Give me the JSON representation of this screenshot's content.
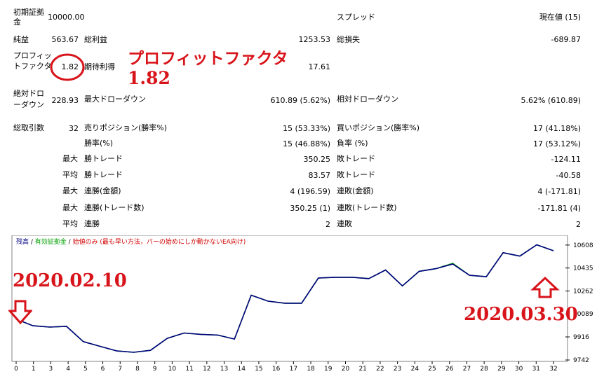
{
  "report": {
    "initial_deposit": {
      "label": "初期証拠金",
      "value": "10000.00"
    },
    "spread": {
      "label": "スプレッド",
      "value": "現在値 (15)"
    },
    "net_profit": {
      "label": "純益",
      "value": "563.67"
    },
    "gross_profit": {
      "label": "総利益",
      "value": "1253.53"
    },
    "gross_loss": {
      "label": "総損失",
      "value": "-689.87"
    },
    "profit_factor": {
      "label": "プロフィットファクタ",
      "value": "1.82"
    },
    "expected_payoff": {
      "label": "期待利得",
      "value": "17.61"
    },
    "absolute_drawdown": {
      "label": "絶対ドローダウン",
      "value": "228.93"
    },
    "maximal_drawdown": {
      "label": "最大ドローダウン",
      "value": "610.89 (5.62%)"
    },
    "relative_drawdown": {
      "label": "相対ドローダウン",
      "value": "5.62% (610.89)"
    },
    "total_trades": {
      "label": "総取引数",
      "value": "32"
    },
    "short_positions": {
      "label": "売りポジション(勝率%)",
      "value": "15 (53.33%)"
    },
    "long_positions": {
      "label": "買いポジション(勝率%)",
      "value": "17 (41.18%)"
    },
    "profit_trades": {
      "label": "勝率(%)",
      "value": "15 (46.88%)"
    },
    "loss_trades": {
      "label": "負率 (%)",
      "value": "17 (53.12%)"
    },
    "largest_profit": {
      "prefix": "最大",
      "label": "勝トレード",
      "value": "350.25"
    },
    "largest_loss": {
      "label": "敗トレード",
      "value": "-124.11"
    },
    "average_profit": {
      "prefix": "平均",
      "label": "勝トレード",
      "value": "83.57"
    },
    "average_loss": {
      "label": "敗トレード",
      "value": "-40.58"
    },
    "max_consec_wins": {
      "prefix": "最大",
      "label": "連勝(金額)",
      "value": "4 (196.59)"
    },
    "max_consec_losses": {
      "label": "連敗(金額)",
      "value": "4 (-171.81)"
    },
    "max_consec_profit": {
      "prefix": "最大",
      "label": "連勝(トレード数)",
      "value": "350.25 (1)"
    },
    "max_consec_loss": {
      "label": "連敗(トレード数)",
      "value": "-171.81 (4)"
    },
    "avg_consec_wins": {
      "prefix": "平均",
      "label": "連勝",
      "value": "2"
    },
    "avg_consec_losses": {
      "label": "連敗",
      "value": "2"
    }
  },
  "annotations": {
    "pf_title": "プロフィットファクタ",
    "pf_value": "1.82",
    "start_date": "2020.02.10",
    "end_date": "2020.03.30",
    "colors": {
      "annotation": "#d8141b"
    }
  },
  "chart_legend": {
    "balance": "残高",
    "sep1": " / ",
    "equity": "有効証拠金",
    "sep2": " / ",
    "note": "始値のみ (最も早い方法，バーの始めにしか動かないEA向け)",
    "colors": {
      "balance": "#000080",
      "equity": "#00a000",
      "note": "#d00000"
    }
  },
  "chart_data": {
    "type": "line",
    "x": [
      0,
      1,
      2,
      3,
      4,
      5,
      6,
      7,
      8,
      9,
      10,
      11,
      12,
      13,
      14,
      15,
      16,
      17,
      18,
      19,
      20,
      21,
      22,
      23,
      24,
      25,
      26,
      27,
      28,
      29,
      30,
      31,
      32
    ],
    "x_tick_labels": [
      "0",
      "1",
      "3",
      "4",
      "5",
      "6",
      "7",
      "8",
      "9",
      "10",
      "11",
      "12",
      "13",
      "14",
      "15",
      "16",
      "17",
      "18",
      "19",
      "20",
      "21",
      "22",
      "23",
      "24",
      "25",
      "26",
      "27",
      "28",
      "29",
      "30",
      "31",
      "32"
    ],
    "series": [
      {
        "name": "残高",
        "color": "#000080",
        "values": [
          10050,
          10000,
          9990,
          9995,
          9880,
          9845,
          9810,
          9800,
          9815,
          9905,
          9945,
          9935,
          9930,
          9900,
          10230,
          10185,
          10170,
          10170,
          10360,
          10365,
          10365,
          10355,
          10420,
          10300,
          10410,
          10430,
          10465,
          10380,
          10370,
          10550,
          10525,
          10610,
          10565
        ]
      },
      {
        "name": "有効証拠金",
        "color": "#00a000",
        "values": [
          10050,
          10000,
          9990,
          9995,
          9880,
          9845,
          9810,
          9800,
          9815,
          9905,
          9945,
          9935,
          9930,
          9900,
          10230,
          10185,
          10170,
          10170,
          10360,
          10365,
          10365,
          10355,
          10420,
          10300,
          10410,
          10430,
          10470,
          10380,
          10370,
          10550,
          10525,
          10610,
          10565
        ]
      }
    ],
    "y_tick_labels": [
      "10608",
      "10435",
      "10262",
      "10089",
      "9916",
      "9742"
    ],
    "ylim": [
      9742,
      10660
    ],
    "grid": false,
    "legend": "top-left"
  }
}
